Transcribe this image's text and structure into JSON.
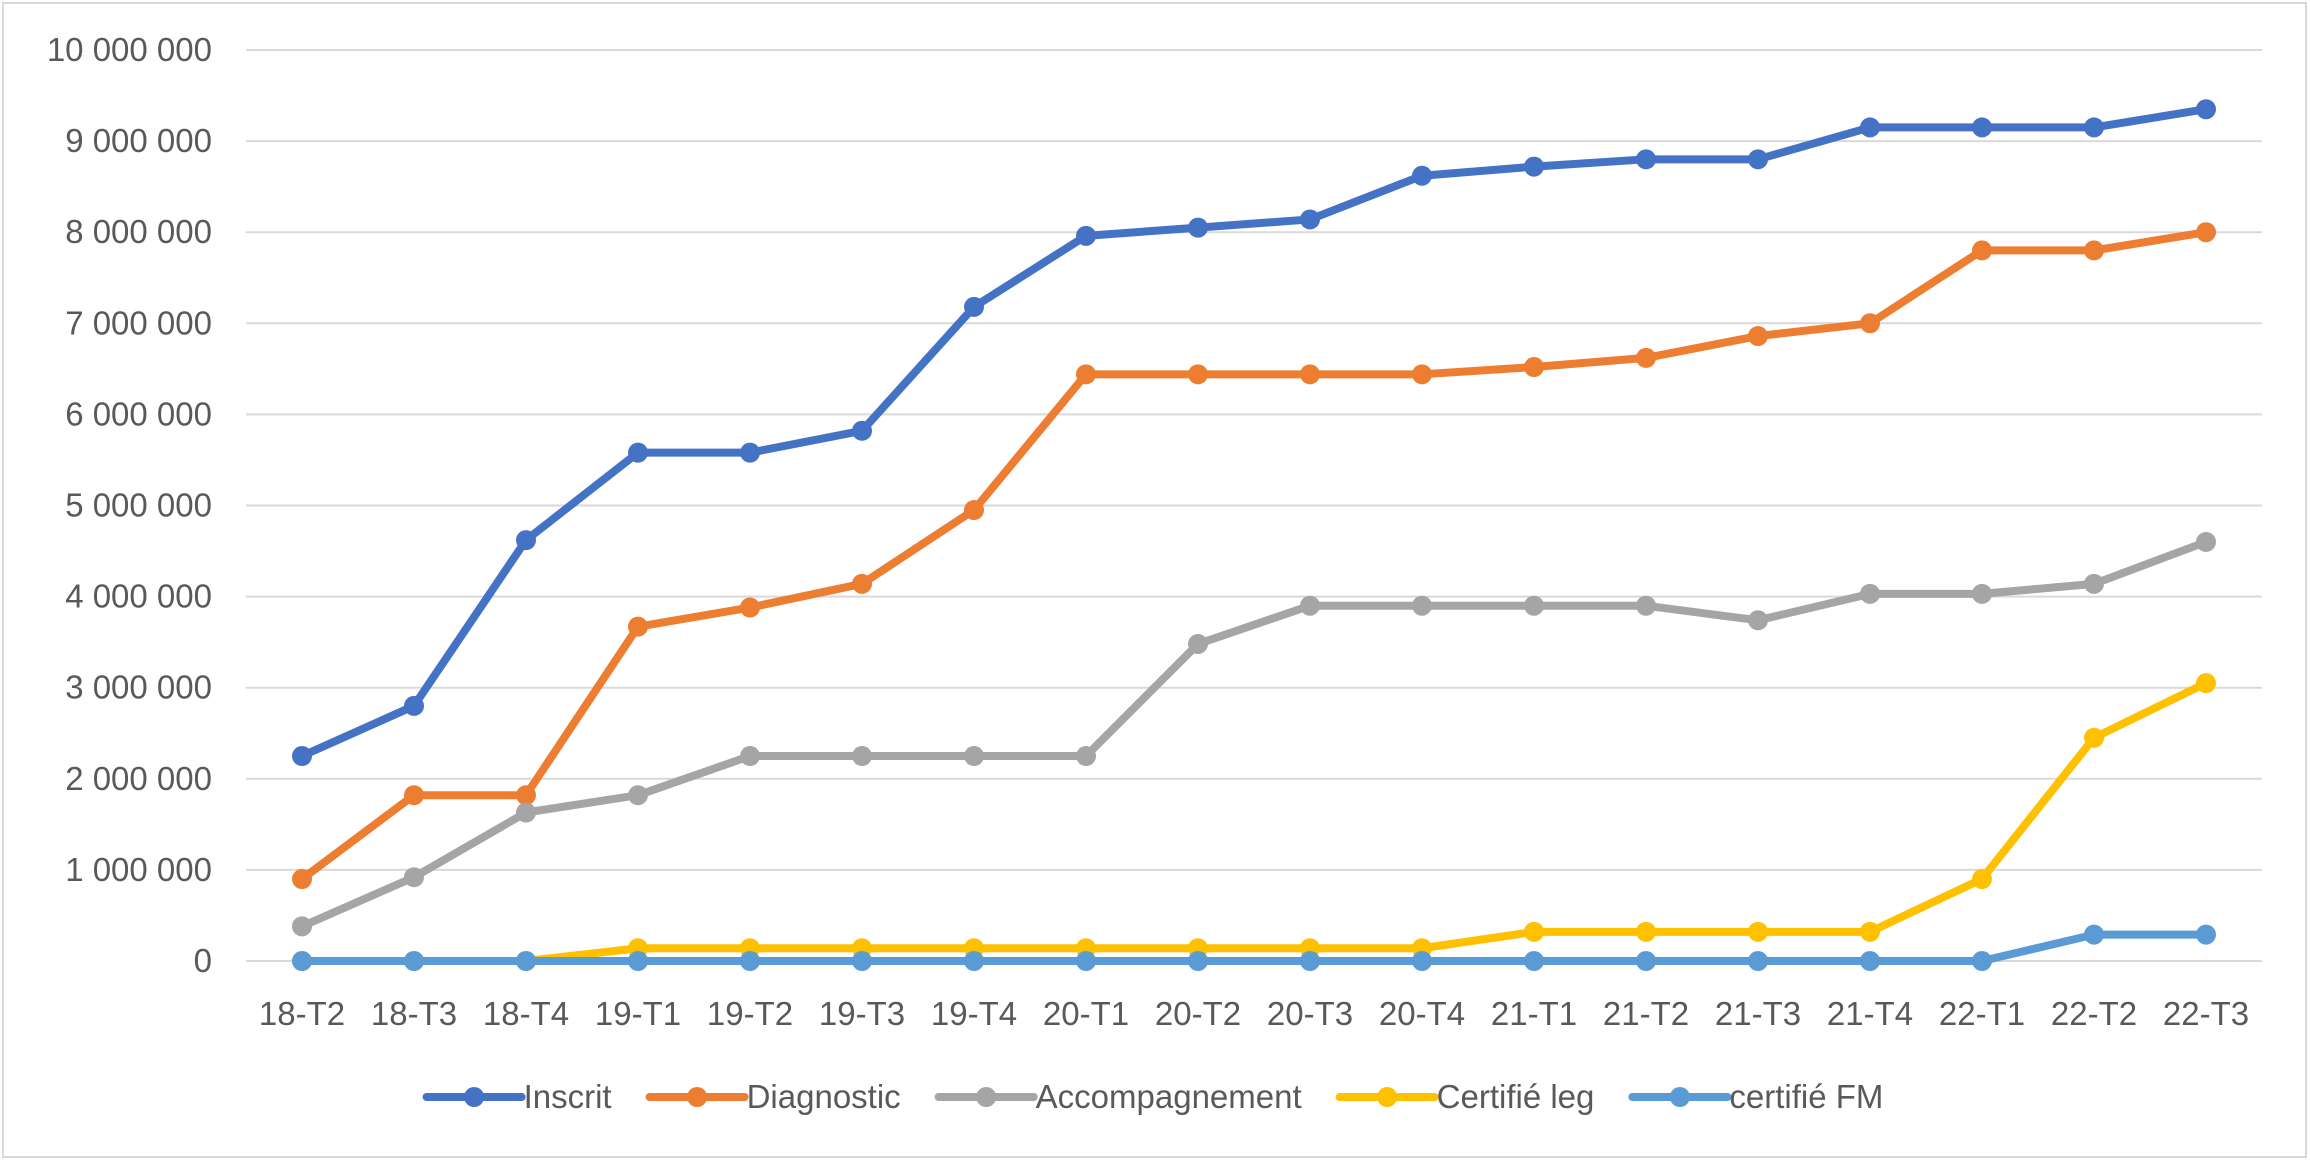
{
  "chart_data": {
    "type": "line",
    "title": "",
    "xlabel": "",
    "ylabel": "",
    "categories": [
      "18-T2",
      "18-T3",
      "18-T4",
      "19-T1",
      "19-T2",
      "19-T3",
      "19-T4",
      "20-T1",
      "20-T2",
      "20-T3",
      "20-T4",
      "21-T1",
      "21-T2",
      "21-T3",
      "21-T4",
      "22-T1",
      "22-T2",
      "22-T3"
    ],
    "ylim": [
      0,
      10000000
    ],
    "yticks": [
      0,
      1000000,
      2000000,
      3000000,
      4000000,
      5000000,
      6000000,
      7000000,
      8000000,
      9000000,
      10000000
    ],
    "ytick_labels": [
      "0",
      "1 000 000",
      "2 000 000",
      "3 000 000",
      "4 000 000",
      "5 000 000",
      "6 000 000",
      "7 000 000",
      "8 000 000",
      "9 000 000",
      "10 000 000"
    ],
    "grid": true,
    "legend_position": "bottom",
    "series": [
      {
        "name": "Inscrit",
        "color": "#4472C4",
        "values": [
          2250000,
          2800000,
          4620000,
          5580000,
          5580000,
          5820000,
          7180000,
          7960000,
          8050000,
          8140000,
          8620000,
          8720000,
          8800000,
          8800000,
          9150000,
          9150000,
          9150000,
          9350000
        ]
      },
      {
        "name": "Diagnostic",
        "color": "#ED7D31",
        "values": [
          900000,
          1820000,
          1820000,
          3670000,
          3880000,
          4140000,
          4950000,
          6440000,
          6440000,
          6440000,
          6440000,
          6520000,
          6620000,
          6860000,
          7000000,
          7800000,
          7800000,
          8000000
        ]
      },
      {
        "name": "Accompagnement",
        "color": "#A5A5A5",
        "values": [
          380000,
          920000,
          1630000,
          1820000,
          2250000,
          2250000,
          2250000,
          2250000,
          3480000,
          3900000,
          3900000,
          3900000,
          3900000,
          3740000,
          4030000,
          4030000,
          4140000,
          4600000
        ]
      },
      {
        "name": "Certifié leg",
        "color": "#FFC000",
        "values": [
          0,
          0,
          0,
          140000,
          140000,
          140000,
          140000,
          140000,
          140000,
          140000,
          140000,
          320000,
          320000,
          320000,
          320000,
          900000,
          2450000,
          3050000
        ]
      },
      {
        "name": "certifié FM",
        "color": "#5B9BD5",
        "values": [
          0,
          0,
          0,
          0,
          0,
          0,
          0,
          0,
          0,
          0,
          0,
          0,
          0,
          0,
          0,
          0,
          290000,
          290000
        ]
      }
    ]
  }
}
